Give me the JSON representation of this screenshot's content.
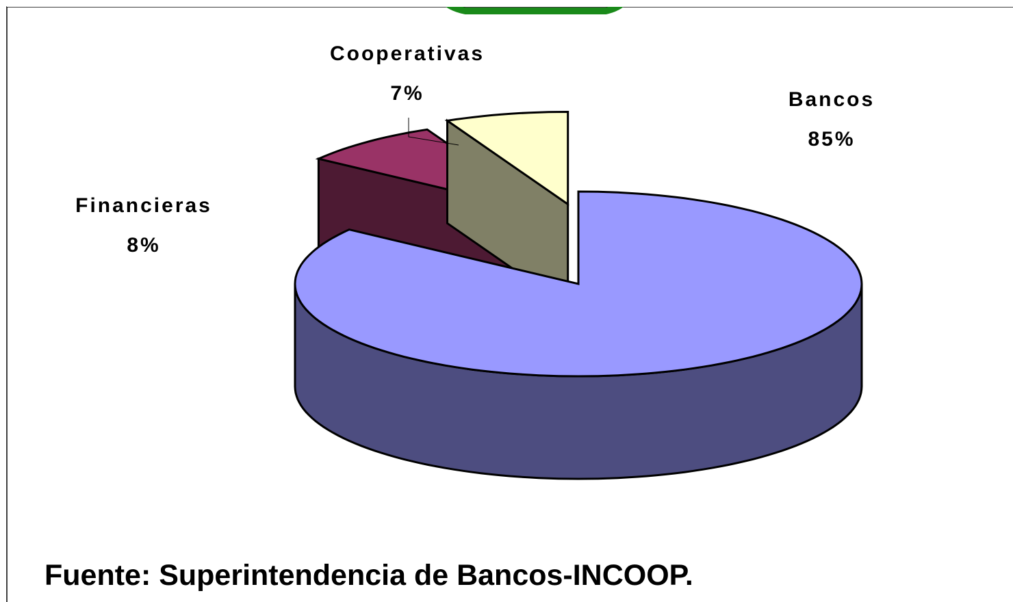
{
  "chart_data": {
    "type": "pie3d",
    "categories": [
      "Bancos",
      "Financieras",
      "Cooperativas"
    ],
    "values": [
      85,
      8,
      7
    ],
    "value_labels": [
      "85%",
      "8%",
      "7%"
    ],
    "colors": [
      "#9999ff",
      "#993366",
      "#ffffcc"
    ],
    "source": "Fuente: Superintendencia de Bancos-INCOOP."
  }
}
